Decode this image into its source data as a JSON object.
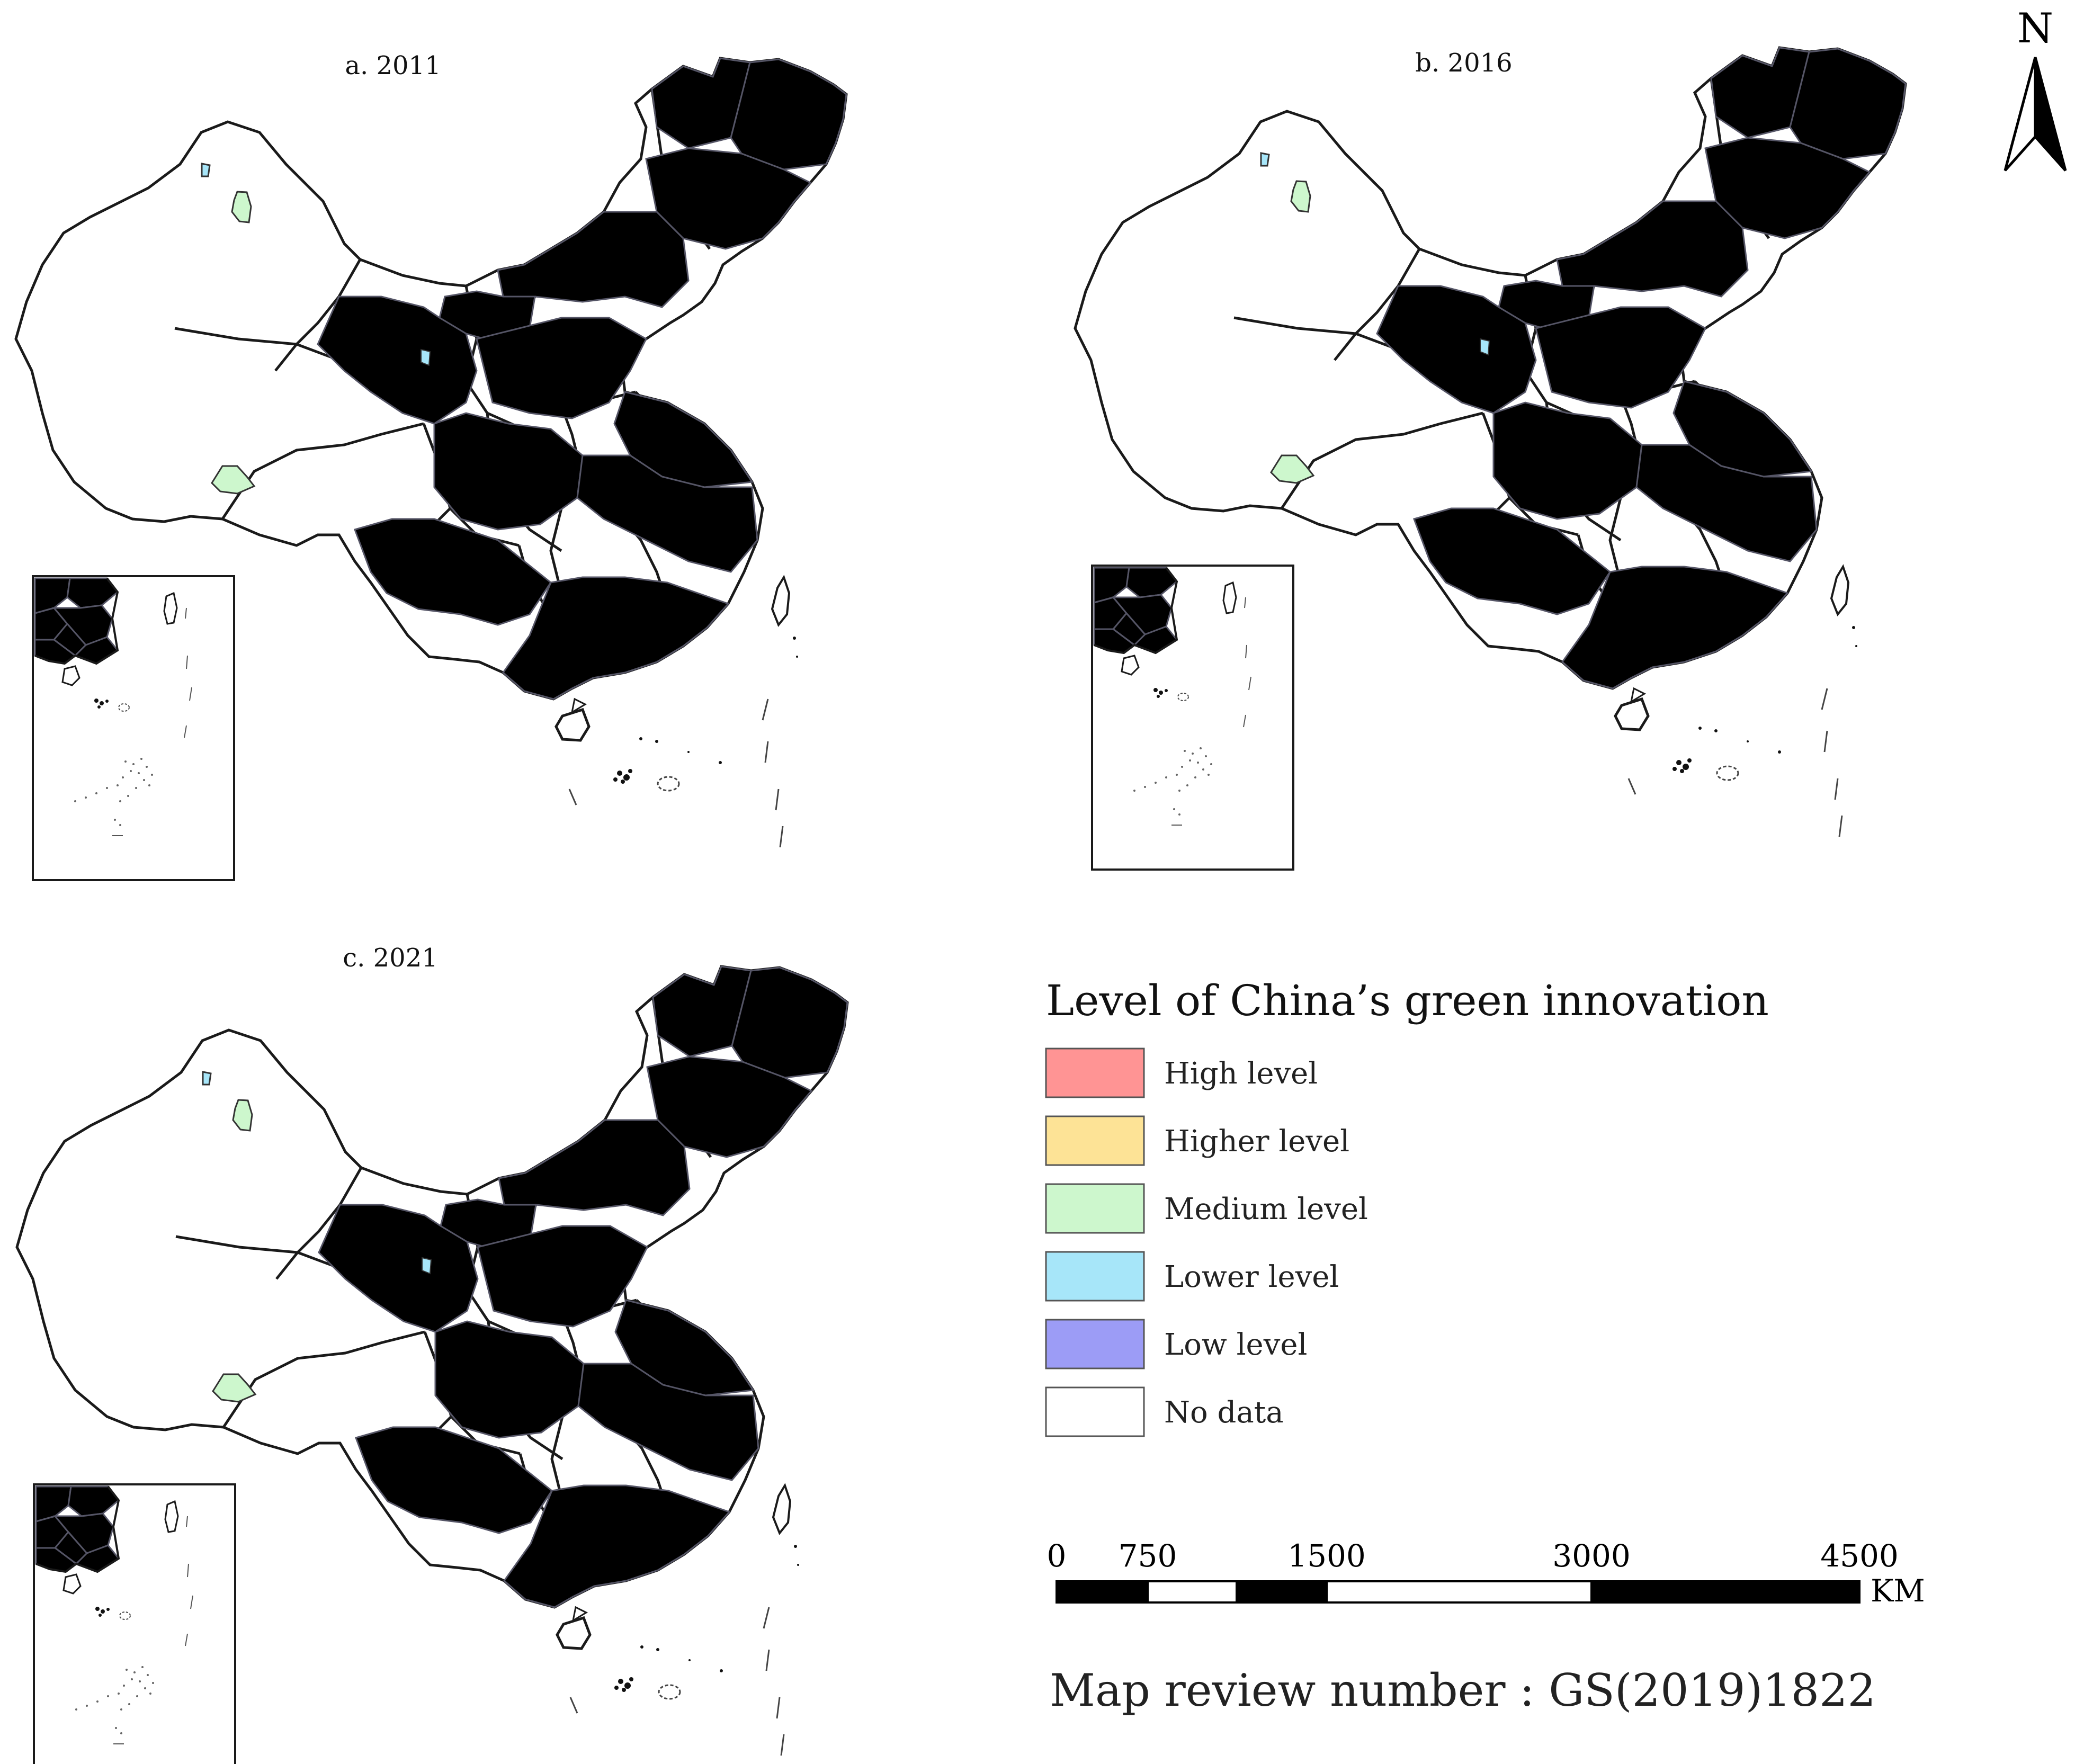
{
  "panels": [
    {
      "label": "a. 2011",
      "palette": [
        "#9b9bf7",
        "#9b9bf7",
        "#a5e6f7",
        "#9b9bf7",
        "#c6f5c6",
        "#9b9bf7",
        "#9b9bf7",
        "#fbe08a",
        "#a5e6f7",
        "#9b9bf7",
        "#ff8e8e",
        "#9b9bf7"
      ]
    },
    {
      "label": "b. 2016",
      "palette": [
        "#9b9bf7",
        "#a5e6f7",
        "#9b9bf7",
        "#a5e6f7",
        "#c6f5c6",
        "#a5e6f7",
        "#9b9bf7",
        "#fbe08a",
        "#a5e6f7",
        "#ff8e8e",
        "#9b9bf7",
        "#a5e6f7"
      ]
    },
    {
      "label": "c. 2021",
      "palette": [
        "#a5e6f7",
        "#a5e6f7",
        "#9b9bf7",
        "#a5e6f7",
        "#c6f5c6",
        "#a5e6f7",
        "#fbe08a",
        "#a5e6f7",
        "#ff8e8e",
        "#c6f5c6",
        "#9b9bf7",
        "#a5e6f7"
      ]
    }
  ],
  "legend": {
    "title": "Level of China’s green innovation",
    "items": [
      {
        "label": "High level",
        "color": "#ff9494"
      },
      {
        "label": "Higher level",
        "color": "#fde396"
      },
      {
        "label": "Medium level",
        "color": "#cdf7cd"
      },
      {
        "label": "Lower level",
        "color": "#a7e6f9"
      },
      {
        "label": "Low level",
        "color": "#9c9cf6"
      },
      {
        "label": "No data",
        "color": "#ffffff"
      }
    ]
  },
  "scale_bar": {
    "ticks": [
      "0",
      "750",
      "1500",
      "3000",
      "4500"
    ],
    "unit": "KM"
  },
  "north_arrow": {
    "label": "N",
    "icon": "north-arrow-icon"
  },
  "review_number": "Map review number : GS(2019)1822",
  "colors": {
    "border": "#1a1a1a",
    "no_data": "#ffffff",
    "scale_dark": "#000000",
    "scale_light": "#ffffff"
  }
}
